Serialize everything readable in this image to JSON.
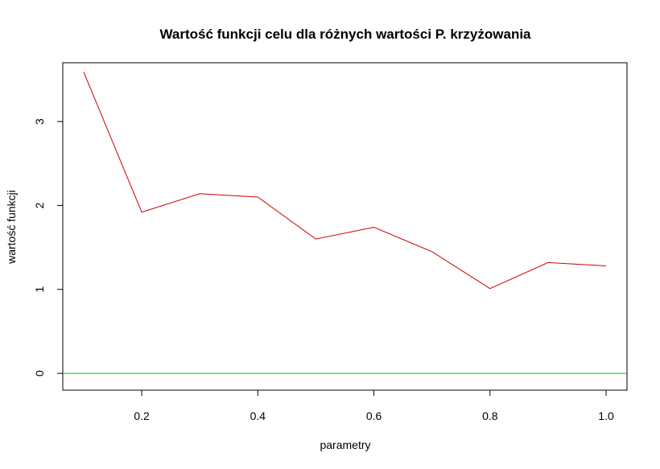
{
  "chart_data": {
    "type": "line",
    "title": "Wartość funkcji celu dla różnych wartości P. krzyżowania",
    "xlabel": "parametry",
    "ylabel": "wartość funkcji",
    "x": [
      0.1,
      0.2,
      0.3,
      0.4,
      0.5,
      0.6,
      0.7,
      0.8,
      0.9,
      1.0
    ],
    "series": [
      {
        "values": [
          3.59,
          1.92,
          2.14,
          2.1,
          1.6,
          1.74,
          1.45,
          1.01,
          1.32,
          1.28
        ],
        "color": "#cc0000"
      }
    ],
    "reference_lines": [
      {
        "y": 0,
        "color": "#00cc00"
      }
    ],
    "xlim": [
      0.064,
      1.036
    ],
    "ylim": [
      -0.2,
      3.7
    ],
    "x_ticks": [
      0.2,
      0.4,
      0.6,
      0.8,
      1.0
    ],
    "x_tick_labels": [
      "0.2",
      "0.4",
      "0.6",
      "0.8",
      "1.0"
    ],
    "y_ticks": [
      0,
      1,
      2,
      3
    ],
    "y_tick_labels": [
      "0",
      "1",
      "2",
      "3"
    ],
    "grid": false,
    "legend": "none"
  }
}
